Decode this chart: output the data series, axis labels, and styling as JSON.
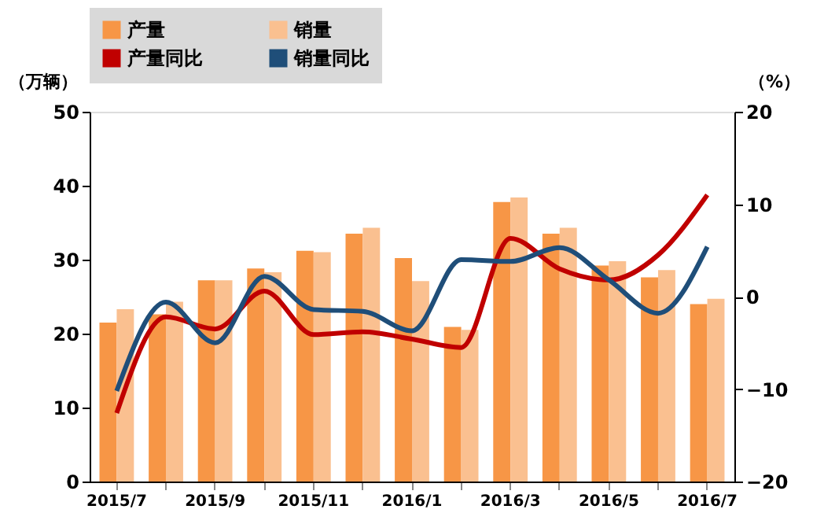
{
  "chart_data": {
    "type": "bar",
    "ylabel": "（万辆）",
    "y2label": "（%）",
    "categories": [
      "2015/7",
      null,
      "2015/9",
      null,
      "2015/11",
      null,
      "2016/1",
      null,
      "2016/3",
      null,
      "2016/5",
      null,
      "2016/7"
    ],
    "series": [
      {
        "name": "产量",
        "color": "#f79646",
        "values": [
          21.5,
          22.6,
          27.2,
          28.8,
          31.2,
          33.5,
          30.2,
          20.9,
          37.8,
          33.5,
          29.2,
          27.6,
          24.0
        ]
      },
      {
        "name": "销量",
        "color": "#fac090",
        "values": [
          23.3,
          24.3,
          27.2,
          28.3,
          31.0,
          34.3,
          27.1,
          20.5,
          38.4,
          34.3,
          29.8,
          28.6,
          24.7
        ]
      },
      {
        "name": "产量同比",
        "type": "line",
        "axis": "y2",
        "color": "#c00000",
        "values": [
          -12.6,
          -2.2,
          -3.5,
          0.6,
          -4.1,
          -3.8,
          -4.6,
          -5.5,
          6.3,
          3.0,
          1.8,
          4.5,
          11.0
        ]
      },
      {
        "name": "销量同比",
        "type": "line",
        "axis": "y2",
        "color": "#1f4e79",
        "values": [
          -10.2,
          -0.6,
          -5.0,
          2.2,
          -1.4,
          -1.6,
          -3.7,
          4.0,
          3.8,
          5.3,
          1.8,
          -1.8,
          5.4
        ]
      }
    ],
    "ylim": [
      0,
      50
    ],
    "yticks": [
      0,
      10,
      20,
      30,
      40,
      50
    ],
    "y2lim": [
      -20,
      20
    ],
    "y2ticks": [
      -20,
      -10,
      0,
      10,
      20
    ],
    "grid": false,
    "legend": "top",
    "marker": "none",
    "line_style": "solid"
  }
}
